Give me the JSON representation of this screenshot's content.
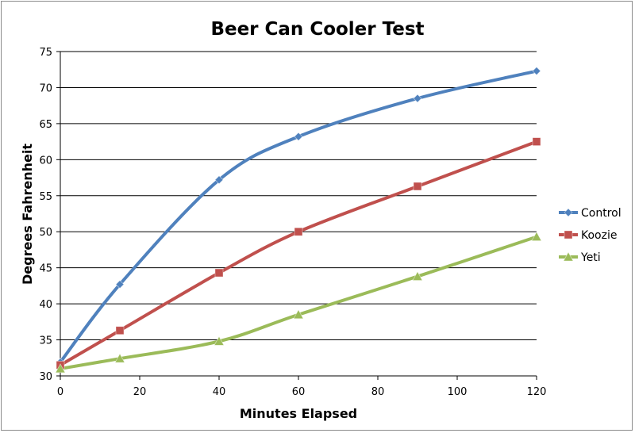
{
  "chart_data": {
    "type": "line",
    "title": "Beer Can Cooler Test",
    "xlabel": "Minutes Elapsed",
    "ylabel": "Degrees Fahrenheit",
    "xlim": [
      0,
      120
    ],
    "ylim": [
      30,
      75
    ],
    "xticks": [
      0,
      20,
      40,
      60,
      80,
      100,
      120
    ],
    "yticks": [
      30,
      35,
      40,
      45,
      50,
      55,
      60,
      65,
      70,
      75
    ],
    "grid": "horizontal",
    "legend_position": "right",
    "smooth": true,
    "series": [
      {
        "name": "Control",
        "color": "#4f81bd",
        "marker": "diamond",
        "x": [
          0,
          15,
          40,
          60,
          90,
          120
        ],
        "y": [
          31.9,
          42.7,
          57.2,
          63.2,
          68.5,
          72.3
        ]
      },
      {
        "name": "Koozie",
        "color": "#c0504d",
        "marker": "square",
        "x": [
          0,
          15,
          40,
          60,
          90,
          120
        ],
        "y": [
          31.5,
          36.3,
          44.3,
          50.0,
          56.3,
          62.5
        ]
      },
      {
        "name": "Yeti",
        "color": "#9bbb59",
        "marker": "triangle",
        "x": [
          0,
          15,
          40,
          60,
          90,
          120
        ],
        "y": [
          31.0,
          32.4,
          34.8,
          38.5,
          43.8,
          49.3
        ]
      }
    ]
  }
}
